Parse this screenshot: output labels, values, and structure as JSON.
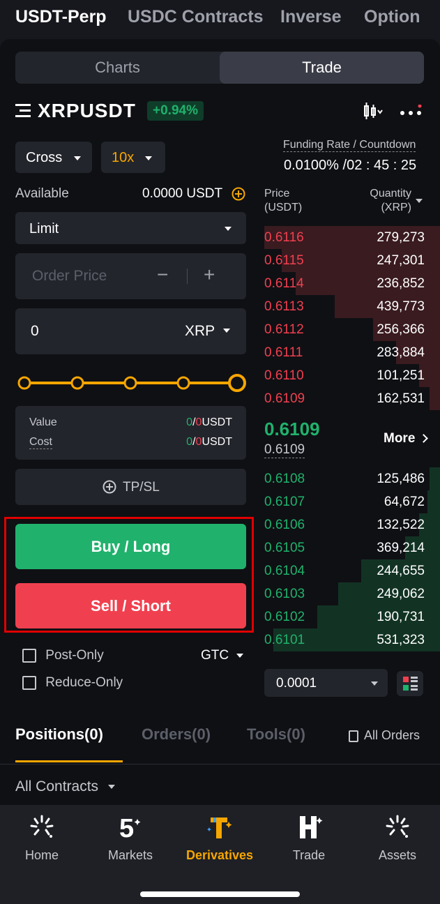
{
  "top_tabs": [
    "USDT-Perp",
    "USDC Contracts",
    "Inverse",
    "Option"
  ],
  "segment": {
    "charts": "Charts",
    "trade": "Trade"
  },
  "symbol": {
    "name": "XRPUSDT",
    "change": "+0.94%"
  },
  "funding": {
    "label": "Funding Rate / Countdown",
    "value": "0.0100% /02 : 45 : 25"
  },
  "margin_mode": "Cross",
  "leverage": "10x",
  "available": {
    "label": "Available",
    "value": "0.0000 USDT"
  },
  "order_type": "Limit",
  "order_price": {
    "placeholder": "Order Price",
    "minus": "−",
    "plus": "+"
  },
  "quantity": {
    "value": "0",
    "unit": "XRP"
  },
  "value_cost": {
    "value_label": "Value",
    "value_green": "0",
    "value_red": "0",
    "unit": "USDT",
    "cost_label": "Cost",
    "cost_green": "0",
    "cost_red": "0",
    "slash": "/"
  },
  "tpsl": "TP/SL",
  "buy_label": "Buy / Long",
  "sell_label": "Sell / Short",
  "post_only": "Post-Only",
  "reduce_only": "Reduce-Only",
  "tif": "GTC",
  "orderbook": {
    "price_header": "Price",
    "price_unit": "(USDT)",
    "qty_header": "Quantity",
    "qty_unit": "(XRP)",
    "asks": [
      {
        "price": "0.6116",
        "qty": "279,273",
        "depth": 1.0
      },
      {
        "price": "0.6115",
        "qty": "247,301",
        "depth": 0.9
      },
      {
        "price": "0.6114",
        "qty": "236,852",
        "depth": 0.82
      },
      {
        "price": "0.6113",
        "qty": "439,773",
        "depth": 0.6
      },
      {
        "price": "0.6112",
        "qty": "256,366",
        "depth": 0.38
      },
      {
        "price": "0.6111",
        "qty": "283,884",
        "depth": 0.25
      },
      {
        "price": "0.6110",
        "qty": "101,251",
        "depth": 0.12
      },
      {
        "price": "0.6109",
        "qty": "162,531",
        "depth": 0.06
      }
    ],
    "last_price": "0.6109",
    "mark_price": "0.6109",
    "more": "More",
    "bids": [
      {
        "price": "0.6108",
        "qty": "125,486",
        "depth": 0.06
      },
      {
        "price": "0.6107",
        "qty": "64,672",
        "depth": 0.07
      },
      {
        "price": "0.6106",
        "qty": "132,522",
        "depth": 0.12
      },
      {
        "price": "0.6105",
        "qty": "369,214",
        "depth": 0.2
      },
      {
        "price": "0.6104",
        "qty": "244,655",
        "depth": 0.45
      },
      {
        "price": "0.6103",
        "qty": "249,062",
        "depth": 0.58
      },
      {
        "price": "0.6102",
        "qty": "190,731",
        "depth": 0.7
      },
      {
        "price": "0.6101",
        "qty": "531,323",
        "depth": 0.95
      }
    ],
    "tick": "0.0001"
  },
  "bottom_tabs": {
    "positions": "Positions(0)",
    "orders": "Orders(0)",
    "tools": "Tools(0)",
    "all_orders": "All Orders"
  },
  "contracts_filter": "All Contracts",
  "nav": [
    "Home",
    "Markets",
    "Derivatives",
    "Trade",
    "Assets"
  ],
  "colors": {
    "buy": "#20b26c",
    "sell": "#f0404f",
    "accent": "#f7a600"
  }
}
